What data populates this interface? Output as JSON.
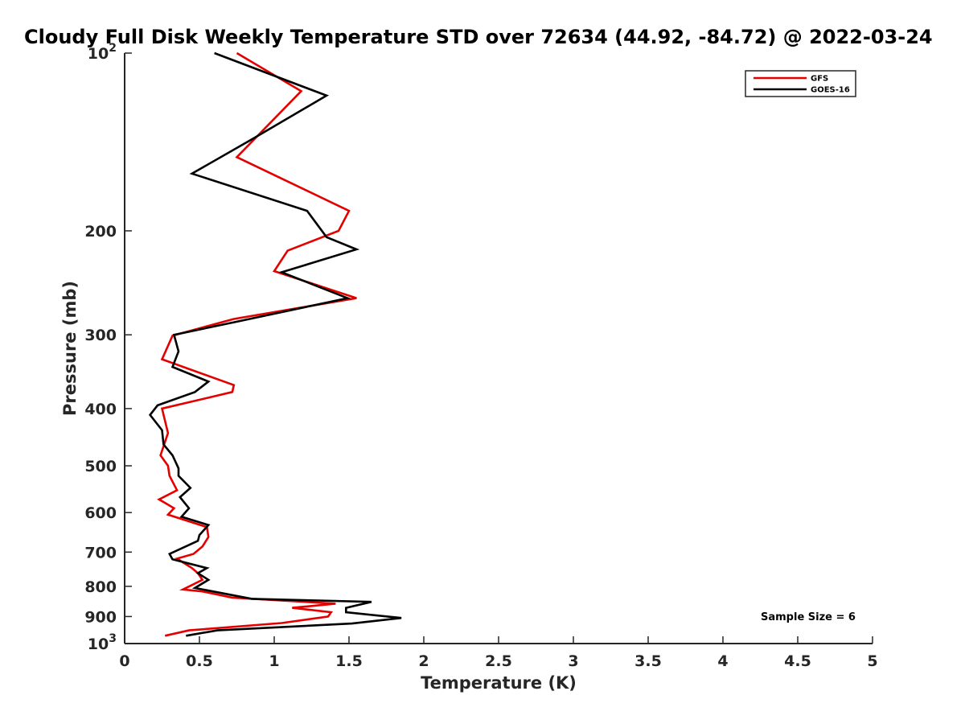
{
  "chart_data": {
    "type": "line",
    "title": "Cloudy Full Disk Weekly Temperature STD over 72634 (44.92, -84.72) @ 2022-03-24",
    "xlabel": "Temperature (K)",
    "ylabel": "Pressure (mb)",
    "xlim": [
      0,
      5
    ],
    "ylim": [
      100,
      1000
    ],
    "y_scale": "log",
    "y_reversed": true,
    "x_ticks": [
      0,
      0.5,
      1,
      1.5,
      2,
      2.5,
      3,
      3.5,
      4,
      4.5,
      5
    ],
    "x_tick_labels": [
      "0",
      "0.5",
      "1",
      "1.5",
      "2",
      "2.5",
      "3",
      "3.5",
      "4",
      "4.5",
      "5"
    ],
    "y_ticks": [
      100,
      200,
      300,
      400,
      500,
      600,
      700,
      800,
      900,
      1000
    ],
    "y_tick_labels": [
      {
        "base": "10",
        "exp": "2"
      },
      {
        "base": "200",
        "exp": ""
      },
      {
        "base": "300",
        "exp": ""
      },
      {
        "base": "400",
        "exp": ""
      },
      {
        "base": "500",
        "exp": ""
      },
      {
        "base": "600",
        "exp": ""
      },
      {
        "base": "700",
        "exp": ""
      },
      {
        "base": "800",
        "exp": ""
      },
      {
        "base": "900",
        "exp": ""
      },
      {
        "base": "10",
        "exp": "3"
      }
    ],
    "grid": false,
    "legend_position": "top-right",
    "annotation": "Sample Size = 6",
    "series": [
      {
        "name": "GFS",
        "color": "#e50000",
        "points": [
          [
            0.75,
            100
          ],
          [
            1.18,
            116
          ],
          [
            0.75,
            150
          ],
          [
            1.5,
            185
          ],
          [
            1.43,
            200
          ],
          [
            1.09,
            216
          ],
          [
            1.0,
            234
          ],
          [
            1.55,
            260
          ],
          [
            0.73,
            282
          ],
          [
            0.32,
            301
          ],
          [
            0.25,
            330
          ],
          [
            0.73,
            365
          ],
          [
            0.72,
            375
          ],
          [
            0.25,
            400
          ],
          [
            0.29,
            440
          ],
          [
            0.24,
            480
          ],
          [
            0.29,
            500
          ],
          [
            0.3,
            520
          ],
          [
            0.35,
            550
          ],
          [
            0.23,
            570
          ],
          [
            0.33,
            590
          ],
          [
            0.29,
            605
          ],
          [
            0.55,
            635
          ],
          [
            0.56,
            660
          ],
          [
            0.52,
            685
          ],
          [
            0.46,
            705
          ],
          [
            0.35,
            718
          ],
          [
            0.45,
            745
          ],
          [
            0.49,
            760
          ],
          [
            0.52,
            780
          ],
          [
            0.39,
            810
          ],
          [
            0.52,
            816
          ],
          [
            0.72,
            836
          ],
          [
            1.41,
            856
          ],
          [
            1.12,
            870
          ],
          [
            1.38,
            885
          ],
          [
            1.36,
            900
          ],
          [
            1.05,
            923
          ],
          [
            0.43,
            950
          ],
          [
            0.27,
            970
          ]
        ]
      },
      {
        "name": "GOES-16",
        "color": "#000000",
        "points": [
          [
            0.6,
            100
          ],
          [
            1.35,
            118
          ],
          [
            0.85,
            140
          ],
          [
            0.45,
            160
          ],
          [
            1.22,
            185
          ],
          [
            1.35,
            205
          ],
          [
            1.55,
            215
          ],
          [
            1.05,
            235
          ],
          [
            1.49,
            260
          ],
          [
            0.75,
            285
          ],
          [
            0.33,
            300
          ],
          [
            0.36,
            320
          ],
          [
            0.32,
            340
          ],
          [
            0.56,
            360
          ],
          [
            0.47,
            375
          ],
          [
            0.22,
            395
          ],
          [
            0.17,
            410
          ],
          [
            0.25,
            435
          ],
          [
            0.26,
            460
          ],
          [
            0.32,
            480
          ],
          [
            0.36,
            505
          ],
          [
            0.36,
            520
          ],
          [
            0.44,
            545
          ],
          [
            0.37,
            565
          ],
          [
            0.43,
            590
          ],
          [
            0.38,
            610
          ],
          [
            0.56,
            630
          ],
          [
            0.5,
            655
          ],
          [
            0.49,
            670
          ],
          [
            0.3,
            705
          ],
          [
            0.32,
            720
          ],
          [
            0.55,
            745
          ],
          [
            0.49,
            760
          ],
          [
            0.56,
            780
          ],
          [
            0.47,
            805
          ],
          [
            0.85,
            840
          ],
          [
            1.65,
            850
          ],
          [
            1.48,
            870
          ],
          [
            1.48,
            885
          ],
          [
            1.85,
            905
          ],
          [
            1.52,
            925
          ],
          [
            0.62,
            950
          ],
          [
            0.41,
            970
          ]
        ]
      }
    ]
  }
}
